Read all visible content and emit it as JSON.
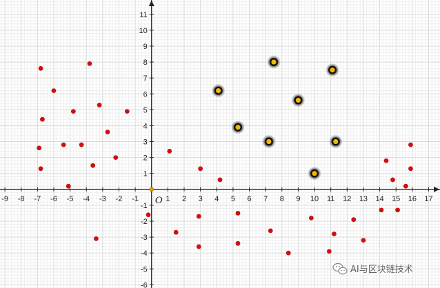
{
  "chart_data": {
    "type": "scatter",
    "title": "",
    "xlabel": "",
    "ylabel": "",
    "xlim": [
      -9.3,
      17.7
    ],
    "ylim": [
      -6.2,
      11.9
    ],
    "x_ticks": [
      -9,
      -8,
      -7,
      -6,
      -5,
      -4,
      -3,
      -2,
      -1,
      1,
      2,
      3,
      4,
      5,
      6,
      7,
      8,
      9,
      10,
      11,
      12,
      13,
      14,
      15,
      16,
      17
    ],
    "y_ticks": [
      -6,
      -5,
      -4,
      -3,
      -2,
      -1,
      1,
      2,
      3,
      4,
      5,
      6,
      7,
      8,
      9,
      10,
      11
    ],
    "origin_label": "O",
    "grid": true,
    "colors": {
      "points": "#cc1111",
      "centroids": "#f5b800",
      "centroid_ring": "#333333",
      "origin_marker": "#d4a017"
    },
    "series": [
      {
        "points": [
          [
            -6.8,
            7.6
          ],
          [
            -3.8,
            7.9
          ],
          [
            -6.0,
            6.2
          ],
          [
            -3.2,
            5.3
          ],
          [
            -4.8,
            4.9
          ],
          [
            -1.5,
            4.9
          ],
          [
            -6.7,
            4.4
          ],
          [
            -2.7,
            3.6
          ],
          [
            -6.9,
            2.6
          ],
          [
            -5.4,
            2.8
          ],
          [
            -4.3,
            2.8
          ],
          [
            -2.2,
            2.0
          ],
          [
            -6.8,
            1.3
          ],
          [
            -3.6,
            1.5
          ],
          [
            -5.1,
            0.2
          ],
          [
            -3.4,
            -3.1
          ],
          [
            1.1,
            2.4
          ],
          [
            3.0,
            1.3
          ],
          [
            4.2,
            0.6
          ],
          [
            -0.2,
            -1.6
          ],
          [
            1.5,
            -2.7
          ],
          [
            2.9,
            -1.7
          ],
          [
            2.9,
            -3.6
          ],
          [
            5.3,
            -1.5
          ],
          [
            5.3,
            -3.4
          ],
          [
            7.3,
            -2.6
          ],
          [
            8.4,
            -4.0
          ],
          [
            9.8,
            -1.8
          ],
          [
            10.9,
            -3.9
          ],
          [
            11.2,
            -2.8
          ],
          [
            12.4,
            -1.9
          ],
          [
            13.0,
            -3.2
          ],
          [
            14.1,
            -1.3
          ],
          [
            14.4,
            1.8
          ],
          [
            14.8,
            0.6
          ],
          [
            15.1,
            -1.3
          ],
          [
            15.6,
            0.2
          ],
          [
            15.9,
            1.3
          ],
          [
            15.9,
            2.8
          ]
        ]
      },
      {
        "points": [
          [
            7.5,
            8.0
          ],
          [
            11.1,
            7.5
          ],
          [
            4.1,
            6.2
          ],
          [
            9.0,
            5.6
          ],
          [
            5.3,
            3.9
          ],
          [
            7.2,
            3.0
          ],
          [
            11.3,
            3.0
          ],
          [
            10.0,
            1.0
          ]
        ]
      }
    ]
  },
  "watermark": {
    "text": "AI与区块链技术",
    "icon": "wechat-icon"
  }
}
